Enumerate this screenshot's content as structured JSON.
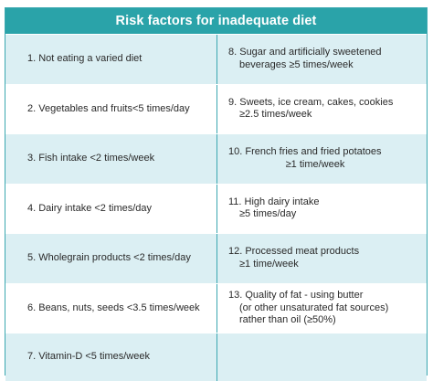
{
  "title": "Risk factors for inadequate diet",
  "rows": [
    {
      "left": "1. Not eating a varied diet",
      "right": [
        "8. Sugar and artificially sweetened",
        "beverages ≥5 times/week"
      ]
    },
    {
      "left": "2. Vegetables and fruits<5 times/day",
      "right": [
        "9. Sweets, ice cream, cakes, cookies",
        "≥2.5 times/week"
      ]
    },
    {
      "left": "3. Fish intake <2 times/week",
      "right": [
        "10. French fries and fried potatoes",
        "≥1 time/week"
      ]
    },
    {
      "left": "4. Dairy intake <2 times/day",
      "right": [
        "11. High dairy intake",
        "≥5 times/day"
      ]
    },
    {
      "left": "5. Wholegrain products <2 times/day",
      "right": [
        "12. Processed meat products",
        "≥1 time/week"
      ]
    },
    {
      "left": "6. Beans, nuts, seeds <3.5 times/week",
      "right": [
        "13. Quality of fat - using butter",
        "(or other unsaturated fat sources)",
        "rather than oil (≥50%)"
      ]
    },
    {
      "left": "7. Vitamin-D <5 times/week",
      "right": []
    }
  ]
}
